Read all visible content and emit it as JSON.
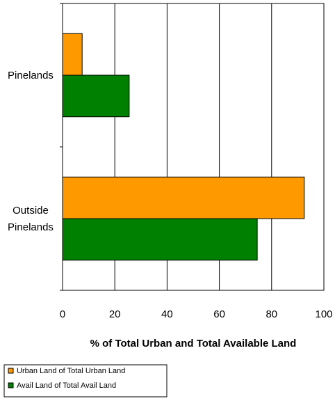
{
  "chart_data": {
    "type": "bar",
    "orientation": "horizontal",
    "categories": [
      "Pinelands",
      "Outside Pinelands"
    ],
    "category_lines": [
      [
        "Pinelands"
      ],
      [
        "Outside",
        "Pinelands"
      ]
    ],
    "series": [
      {
        "name": "Urban Land of Total Urban Land",
        "values": [
          7.5,
          92.5
        ],
        "color": "#ff9900"
      },
      {
        "name": "Avail Land of Total Avail Land",
        "values": [
          25.5,
          74.5
        ],
        "color": "#008000"
      }
    ],
    "xlabel": "% of Total Urban and Total Available Land",
    "xlim": [
      0,
      100
    ],
    "xticks": [
      "0",
      "20",
      "40",
      "60",
      "80",
      "100"
    ],
    "grid": true,
    "legend_position": "bottom-left"
  }
}
